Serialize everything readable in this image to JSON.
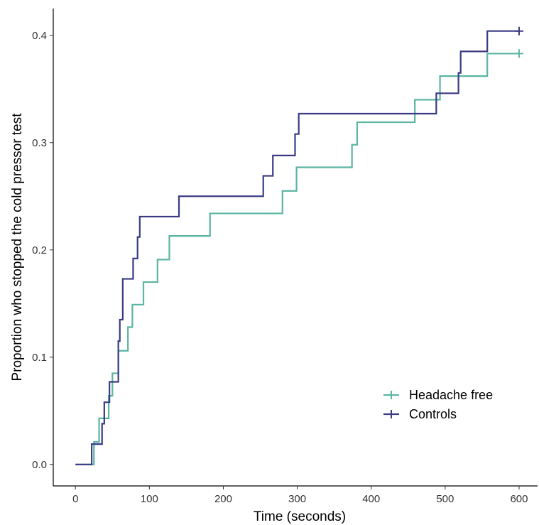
{
  "chart_data": {
    "type": "line",
    "subtype": "step (Kaplan-Meier style cumulative proportion)",
    "xlabel": "Time (seconds)",
    "ylabel": "Proportion who stopped the cold pressor test",
    "xlim": [
      -30,
      625
    ],
    "ylim": [
      -0.02,
      0.425
    ],
    "x_ticks": [
      0,
      100,
      200,
      300,
      400,
      500,
      600
    ],
    "x_tick_labels": [
      "0",
      "100",
      "200",
      "300",
      "400",
      "500",
      "600"
    ],
    "y_ticks": [
      0.0,
      0.1,
      0.2,
      0.3,
      0.4
    ],
    "y_tick_labels": [
      "0.0",
      "0.1",
      "0.2",
      "0.3",
      "0.4"
    ],
    "grid": false,
    "legend_position": "bottom-right",
    "series": [
      {
        "name": "Headache free",
        "color": "#5bb5a2",
        "censor_marker": "+",
        "points": [
          [
            0,
            0.0
          ],
          [
            25,
            0.0
          ],
          [
            25,
            0.021
          ],
          [
            32,
            0.021
          ],
          [
            32,
            0.043
          ],
          [
            45,
            0.043
          ],
          [
            45,
            0.064
          ],
          [
            50,
            0.064
          ],
          [
            50,
            0.085
          ],
          [
            58,
            0.085
          ],
          [
            58,
            0.106
          ],
          [
            71,
            0.106
          ],
          [
            71,
            0.128
          ],
          [
            77,
            0.128
          ],
          [
            77,
            0.149
          ],
          [
            92,
            0.149
          ],
          [
            92,
            0.17
          ],
          [
            111,
            0.17
          ],
          [
            111,
            0.191
          ],
          [
            127,
            0.191
          ],
          [
            127,
            0.213
          ],
          [
            182,
            0.213
          ],
          [
            182,
            0.234
          ],
          [
            280,
            0.234
          ],
          [
            280,
            0.255
          ],
          [
            299,
            0.255
          ],
          [
            299,
            0.277
          ],
          [
            374,
            0.277
          ],
          [
            374,
            0.298
          ],
          [
            381,
            0.298
          ],
          [
            381,
            0.319
          ],
          [
            459,
            0.319
          ],
          [
            459,
            0.34
          ],
          [
            493,
            0.34
          ],
          [
            493,
            0.362
          ],
          [
            557,
            0.362
          ],
          [
            557,
            0.383
          ],
          [
            600,
            0.383
          ]
        ]
      },
      {
        "name": "Controls",
        "color": "#3b3b85",
        "censor_marker": "+",
        "points": [
          [
            0,
            0.0
          ],
          [
            22,
            0.0
          ],
          [
            22,
            0.019
          ],
          [
            36,
            0.019
          ],
          [
            36,
            0.038
          ],
          [
            39,
            0.038
          ],
          [
            39,
            0.058
          ],
          [
            46,
            0.058
          ],
          [
            46,
            0.077
          ],
          [
            58,
            0.077
          ],
          [
            58,
            0.115
          ],
          [
            60,
            0.115
          ],
          [
            60,
            0.135
          ],
          [
            64,
            0.135
          ],
          [
            64,
            0.173
          ],
          [
            78,
            0.173
          ],
          [
            78,
            0.192
          ],
          [
            84,
            0.192
          ],
          [
            84,
            0.212
          ],
          [
            87,
            0.212
          ],
          [
            87,
            0.231
          ],
          [
            140,
            0.231
          ],
          [
            140,
            0.25
          ],
          [
            254,
            0.25
          ],
          [
            254,
            0.269
          ],
          [
            267,
            0.269
          ],
          [
            267,
            0.288
          ],
          [
            297,
            0.288
          ],
          [
            297,
            0.308
          ],
          [
            302,
            0.308
          ],
          [
            302,
            0.327
          ],
          [
            488,
            0.327
          ],
          [
            488,
            0.346
          ],
          [
            518,
            0.346
          ],
          [
            518,
            0.365
          ],
          [
            521,
            0.365
          ],
          [
            521,
            0.385
          ],
          [
            557,
            0.385
          ],
          [
            557,
            0.404
          ],
          [
            600,
            0.404
          ]
        ]
      }
    ]
  }
}
